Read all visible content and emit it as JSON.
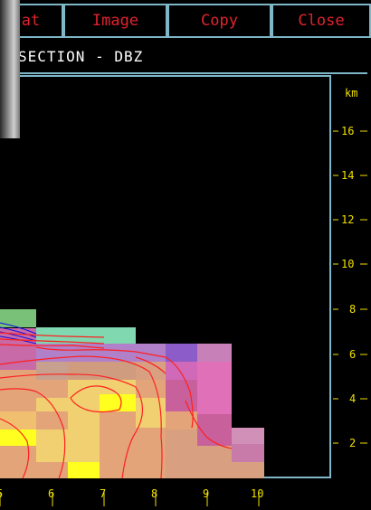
{
  "toolbar": {
    "buttons": [
      {
        "label": "at"
      },
      {
        "label": "Image"
      },
      {
        "label": "Copy"
      },
      {
        "label": "Close"
      }
    ],
    "button_color": "#e0232e",
    "border_color": "#7fb7c8"
  },
  "title": "SECTION - DBZ",
  "plot": {
    "y_unit_label": "km",
    "y_ticks": [
      "16",
      "14",
      "12",
      "10",
      "8",
      "6",
      "4",
      "2"
    ],
    "x_ticks": [
      "5",
      "6",
      "7",
      "8",
      "9",
      "10"
    ],
    "tick_color": "#f0e000",
    "contour_color": "#ff2020"
  }
}
